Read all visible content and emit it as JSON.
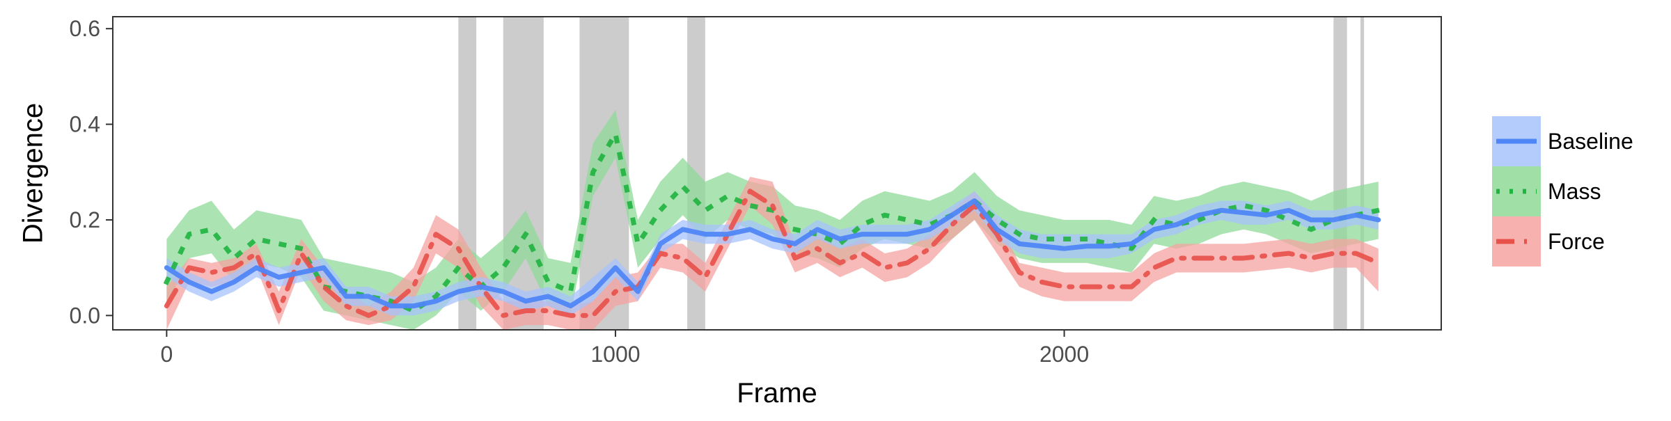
{
  "chart_data": {
    "type": "line",
    "xlabel": "Frame",
    "ylabel": "Divergence",
    "xlim": [
      -120,
      2840
    ],
    "ylim": [
      -0.03,
      0.625
    ],
    "x_ticks": [
      {
        "value": 0,
        "label": "0"
      },
      {
        "value": 1000,
        "label": "1000"
      },
      {
        "value": 2000,
        "label": "2000"
      }
    ],
    "y_ticks": [
      {
        "value": 0.0,
        "label": "0.0"
      },
      {
        "value": 0.2,
        "label": "0.2"
      },
      {
        "value": 0.4,
        "label": "0.4"
      },
      {
        "value": 0.6,
        "label": "0.6"
      }
    ],
    "grid": false,
    "legend_position": "right",
    "shaded_regions": [
      [
        650,
        690
      ],
      [
        750,
        840
      ],
      [
        920,
        1030
      ],
      [
        1160,
        1200
      ],
      [
        2600,
        2630
      ],
      [
        2660,
        2668
      ]
    ],
    "shaded_color": "#cccccc",
    "x": [
      0,
      50,
      100,
      150,
      200,
      250,
      300,
      350,
      400,
      450,
      500,
      550,
      600,
      650,
      700,
      750,
      800,
      850,
      900,
      950,
      1000,
      1050,
      1100,
      1150,
      1200,
      1250,
      1300,
      1350,
      1400,
      1450,
      1500,
      1550,
      1600,
      1650,
      1700,
      1750,
      1800,
      1850,
      1900,
      1950,
      2000,
      2050,
      2100,
      2150,
      2200,
      2250,
      2300,
      2350,
      2400,
      2450,
      2500,
      2550,
      2600,
      2650,
      2700
    ],
    "series": [
      {
        "name": "Baseline",
        "color": "#4f86f7",
        "band_color": "#a7c3fb",
        "dash": "solid",
        "values": [
          0.1,
          0.07,
          0.05,
          0.07,
          0.1,
          0.08,
          0.09,
          0.1,
          0.04,
          0.04,
          0.02,
          0.02,
          0.03,
          0.05,
          0.06,
          0.05,
          0.03,
          0.04,
          0.02,
          0.05,
          0.1,
          0.05,
          0.15,
          0.18,
          0.17,
          0.17,
          0.18,
          0.16,
          0.15,
          0.18,
          0.16,
          0.17,
          0.17,
          0.17,
          0.18,
          0.21,
          0.24,
          0.18,
          0.15,
          0.145,
          0.14,
          0.145,
          0.145,
          0.15,
          0.18,
          0.19,
          0.21,
          0.22,
          0.215,
          0.21,
          0.22,
          0.2,
          0.2,
          0.21,
          0.2
        ],
        "upper": [
          0.12,
          0.09,
          0.07,
          0.09,
          0.12,
          0.1,
          0.11,
          0.12,
          0.06,
          0.06,
          0.04,
          0.04,
          0.05,
          0.07,
          0.08,
          0.07,
          0.05,
          0.06,
          0.04,
          0.08,
          0.12,
          0.07,
          0.17,
          0.2,
          0.19,
          0.19,
          0.2,
          0.18,
          0.17,
          0.2,
          0.18,
          0.19,
          0.19,
          0.19,
          0.2,
          0.23,
          0.26,
          0.21,
          0.18,
          0.17,
          0.17,
          0.17,
          0.17,
          0.17,
          0.2,
          0.21,
          0.23,
          0.24,
          0.24,
          0.23,
          0.24,
          0.22,
          0.22,
          0.23,
          0.22
        ],
        "lower": [
          0.08,
          0.05,
          0.03,
          0.05,
          0.08,
          0.06,
          0.07,
          0.08,
          0.02,
          0.02,
          0.0,
          0.0,
          0.01,
          0.03,
          0.04,
          0.03,
          0.01,
          0.02,
          0.0,
          0.03,
          0.08,
          0.03,
          0.13,
          0.16,
          0.15,
          0.15,
          0.16,
          0.14,
          0.13,
          0.16,
          0.14,
          0.15,
          0.15,
          0.15,
          0.16,
          0.19,
          0.22,
          0.16,
          0.13,
          0.12,
          0.12,
          0.12,
          0.12,
          0.13,
          0.16,
          0.17,
          0.19,
          0.2,
          0.19,
          0.19,
          0.2,
          0.18,
          0.18,
          0.19,
          0.18
        ]
      },
      {
        "name": "Mass",
        "color": "#1fb33f",
        "band_color": "#8fdb98",
        "dash": "dotted",
        "values": [
          0.07,
          0.17,
          0.18,
          0.12,
          0.16,
          0.15,
          0.14,
          0.06,
          0.05,
          0.04,
          0.03,
          0.01,
          0.04,
          0.1,
          0.06,
          0.1,
          0.17,
          0.07,
          0.05,
          0.3,
          0.38,
          0.15,
          0.22,
          0.27,
          0.22,
          0.25,
          0.23,
          0.22,
          0.18,
          0.17,
          0.15,
          0.19,
          0.21,
          0.2,
          0.19,
          0.21,
          0.24,
          0.2,
          0.17,
          0.16,
          0.16,
          0.16,
          0.15,
          0.14,
          0.2,
          0.19,
          0.2,
          0.22,
          0.23,
          0.22,
          0.2,
          0.18,
          0.2,
          0.21,
          0.22
        ],
        "upper": [
          0.16,
          0.22,
          0.24,
          0.18,
          0.22,
          0.21,
          0.2,
          0.12,
          0.11,
          0.1,
          0.09,
          0.07,
          0.1,
          0.16,
          0.12,
          0.16,
          0.22,
          0.12,
          0.11,
          0.36,
          0.43,
          0.2,
          0.28,
          0.33,
          0.28,
          0.3,
          0.28,
          0.27,
          0.23,
          0.22,
          0.2,
          0.24,
          0.26,
          0.25,
          0.24,
          0.26,
          0.3,
          0.25,
          0.22,
          0.21,
          0.2,
          0.2,
          0.2,
          0.19,
          0.25,
          0.24,
          0.25,
          0.27,
          0.28,
          0.27,
          0.26,
          0.24,
          0.26,
          0.27,
          0.28
        ],
        "lower": [
          0.02,
          0.12,
          0.13,
          0.07,
          0.11,
          0.1,
          0.08,
          0.01,
          0.0,
          -0.01,
          -0.02,
          -0.04,
          0.0,
          0.05,
          0.01,
          0.05,
          0.12,
          0.02,
          0.0,
          0.25,
          0.33,
          0.1,
          0.16,
          0.21,
          0.16,
          0.2,
          0.18,
          0.17,
          0.13,
          0.12,
          0.1,
          0.14,
          0.16,
          0.15,
          0.14,
          0.16,
          0.2,
          0.15,
          0.12,
          0.11,
          0.11,
          0.11,
          0.1,
          0.09,
          0.15,
          0.14,
          0.15,
          0.17,
          0.18,
          0.17,
          0.15,
          0.13,
          0.14,
          0.15,
          0.16
        ]
      },
      {
        "name": "Force",
        "color": "#e8504a",
        "band_color": "#f6a3a0",
        "dash": "dashdot",
        "values": [
          0.02,
          0.1,
          0.09,
          0.1,
          0.13,
          0.01,
          0.13,
          0.06,
          0.02,
          0.0,
          0.02,
          0.06,
          0.17,
          0.14,
          0.06,
          0.0,
          0.01,
          0.01,
          0.0,
          0.0,
          0.05,
          0.06,
          0.13,
          0.12,
          0.08,
          0.17,
          0.26,
          0.23,
          0.12,
          0.14,
          0.11,
          0.13,
          0.1,
          0.11,
          0.14,
          0.19,
          0.23,
          0.17,
          0.09,
          0.07,
          0.06,
          0.06,
          0.06,
          0.06,
          0.1,
          0.12,
          0.12,
          0.12,
          0.12,
          0.125,
          0.13,
          0.12,
          0.13,
          0.13,
          0.11
        ],
        "upper": [
          0.06,
          0.12,
          0.11,
          0.12,
          0.15,
          0.05,
          0.16,
          0.1,
          0.05,
          0.02,
          0.05,
          0.1,
          0.21,
          0.18,
          0.1,
          0.03,
          0.03,
          0.03,
          0.02,
          0.03,
          0.08,
          0.09,
          0.15,
          0.15,
          0.11,
          0.2,
          0.29,
          0.28,
          0.15,
          0.17,
          0.14,
          0.16,
          0.13,
          0.14,
          0.17,
          0.22,
          0.26,
          0.2,
          0.11,
          0.1,
          0.09,
          0.09,
          0.09,
          0.09,
          0.13,
          0.15,
          0.15,
          0.15,
          0.15,
          0.155,
          0.16,
          0.15,
          0.16,
          0.16,
          0.14
        ],
        "lower": [
          -0.03,
          0.07,
          0.06,
          0.07,
          0.1,
          -0.02,
          0.1,
          0.03,
          -0.01,
          -0.02,
          -0.01,
          0.03,
          0.13,
          0.1,
          0.02,
          -0.03,
          -0.02,
          -0.02,
          -0.03,
          -0.03,
          0.02,
          0.03,
          0.1,
          0.09,
          0.05,
          0.14,
          0.23,
          0.19,
          0.09,
          0.11,
          0.08,
          0.1,
          0.07,
          0.08,
          0.11,
          0.16,
          0.2,
          0.13,
          0.06,
          0.04,
          0.03,
          0.03,
          0.03,
          0.03,
          0.07,
          0.09,
          0.09,
          0.09,
          0.09,
          0.095,
          0.1,
          0.09,
          0.1,
          0.1,
          0.05
        ]
      }
    ]
  }
}
